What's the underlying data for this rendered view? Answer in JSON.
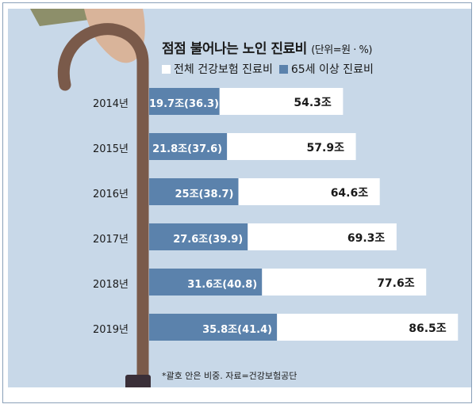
{
  "chart_data": {
    "type": "bar",
    "title": "점점 불어나는 노인 진료비",
    "unit_note": "(단위=원 · %)",
    "categories": [
      "2014년",
      "2015년",
      "2016년",
      "2017년",
      "2018년",
      "2019년"
    ],
    "series": [
      {
        "name": "전체 건강보험 진료비",
        "values": [
          54.3,
          57.9,
          64.6,
          69.3,
          77.6,
          86.5
        ],
        "labels": [
          "54.3조",
          "57.9조",
          "64.6조",
          "69.3조",
          "77.6조",
          "86.5조"
        ],
        "color": "#ffffff"
      },
      {
        "name": "65세 이상 진료비",
        "values": [
          19.7,
          21.8,
          25,
          27.6,
          31.6,
          35.8
        ],
        "labels": [
          "19.7조(36.3)",
          "21.8조(37.6)",
          "25조(38.7)",
          "27.6조(39.9)",
          "31.6조(40.8)",
          "35.8조(41.4)"
        ],
        "share_pct": [
          36.3,
          37.6,
          38.7,
          39.9,
          40.8,
          41.4
        ],
        "color": "#5b82ac"
      }
    ],
    "footnote": "*괄호 안은 비중. 자료=건강보험공단",
    "orientation": "horizontal",
    "legend_position": "top"
  },
  "colors": {
    "background": "#c8d8e8",
    "total_bar": "#ffffff",
    "senior_bar": "#5b82ac",
    "cane": "#7a5a4a",
    "hand": "#d9b49a"
  }
}
